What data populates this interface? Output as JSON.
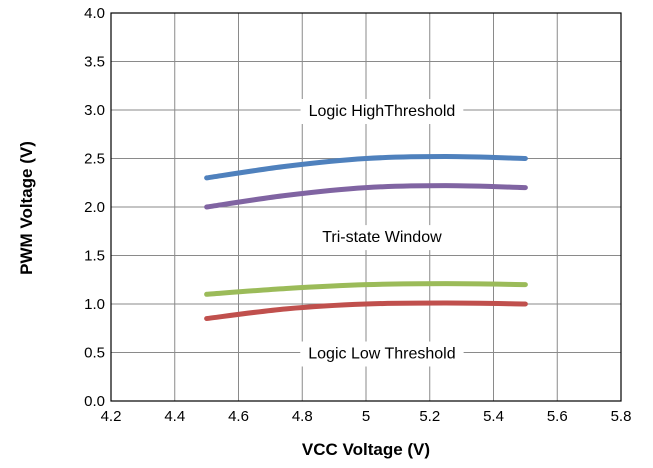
{
  "chart_data": {
    "type": "line",
    "xlabel": "VCC Voltage (V)",
    "ylabel": "PWM Voltage (V)",
    "xlim": [
      4.2,
      5.8
    ],
    "ylim": [
      0.0,
      4.0
    ],
    "x_ticks": [
      "4.2",
      "4.4",
      "4.6",
      "4.8",
      "5",
      "5.2",
      "5.4",
      "5.6",
      "5.8"
    ],
    "y_ticks": [
      "0.0",
      "0.5",
      "1.0",
      "1.5",
      "2.0",
      "2.5",
      "3.0",
      "3.5",
      "4.0"
    ],
    "grid": true,
    "x": [
      4.5,
      4.75,
      5.0,
      5.25,
      5.5
    ],
    "series": [
      {
        "color": "#4f81bd",
        "values": [
          2.3,
          2.42,
          2.5,
          2.52,
          2.5
        ]
      },
      {
        "color": "#8064a2",
        "values": [
          2.0,
          2.12,
          2.2,
          2.22,
          2.2
        ]
      },
      {
        "color": "#9bbb59",
        "values": [
          1.1,
          1.16,
          1.2,
          1.21,
          1.2
        ]
      },
      {
        "color": "#c0504d",
        "values": [
          0.85,
          0.95,
          1.0,
          1.01,
          1.0
        ]
      }
    ],
    "annotations": [
      {
        "text": "Logic HighThreshold",
        "x": 5.05,
        "y": 3.0
      },
      {
        "text": "Tri-state Window",
        "x": 5.05,
        "y": 1.7
      },
      {
        "text": "Logic Low Threshold",
        "x": 5.05,
        "y": 0.5
      }
    ]
  }
}
